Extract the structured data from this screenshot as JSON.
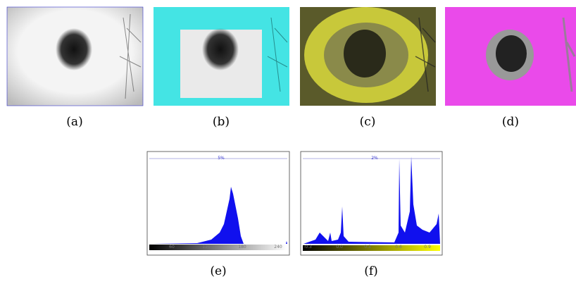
{
  "panels": [
    {
      "caption": "(a)"
    },
    {
      "caption": "(b)"
    },
    {
      "caption": "(c)"
    },
    {
      "caption": "(d)"
    }
  ],
  "histograms": [
    {
      "caption": "(e)",
      "peak_label": "5%",
      "tick_labels": [
        "60",
        "120",
        "180",
        "240"
      ]
    },
    {
      "caption": "(f)",
      "peak_label": "2%",
      "tick_labels": [
        "-0.3",
        "0.0",
        "0.3",
        "0.6",
        "0.9"
      ]
    }
  ]
}
